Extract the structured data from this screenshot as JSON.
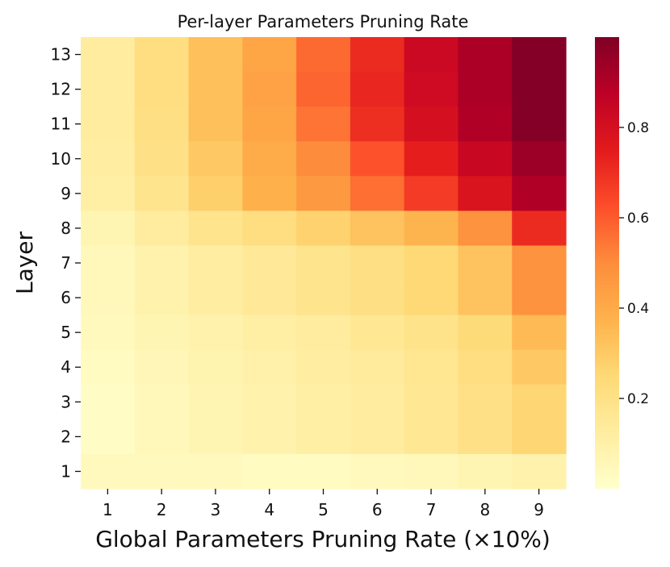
{
  "chart_data": {
    "type": "heatmap",
    "title": "Per-layer Parameters Pruning Rate",
    "xlabel": "Global Parameters Pruning Rate (×10%)",
    "ylabel": "Layer",
    "x_categories": [
      "1",
      "2",
      "3",
      "4",
      "5",
      "6",
      "7",
      "8",
      "9"
    ],
    "y_categories": [
      "13",
      "12",
      "11",
      "10",
      "9",
      "8",
      "7",
      "6",
      "5",
      "4",
      "3",
      "2",
      "1"
    ],
    "values": [
      [
        0.13,
        0.22,
        0.33,
        0.42,
        0.57,
        0.71,
        0.83,
        0.91,
        0.99
      ],
      [
        0.13,
        0.22,
        0.33,
        0.43,
        0.58,
        0.72,
        0.82,
        0.91,
        0.99
      ],
      [
        0.13,
        0.21,
        0.33,
        0.42,
        0.55,
        0.7,
        0.8,
        0.9,
        0.99
      ],
      [
        0.12,
        0.2,
        0.3,
        0.4,
        0.5,
        0.62,
        0.74,
        0.84,
        0.94
      ],
      [
        0.11,
        0.18,
        0.28,
        0.38,
        0.46,
        0.56,
        0.67,
        0.78,
        0.9
      ],
      [
        0.07,
        0.13,
        0.18,
        0.22,
        0.27,
        0.32,
        0.37,
        0.48,
        0.71
      ],
      [
        0.05,
        0.09,
        0.12,
        0.15,
        0.18,
        0.21,
        0.25,
        0.32,
        0.48
      ],
      [
        0.05,
        0.09,
        0.12,
        0.15,
        0.18,
        0.21,
        0.25,
        0.32,
        0.48
      ],
      [
        0.04,
        0.07,
        0.09,
        0.11,
        0.13,
        0.16,
        0.19,
        0.24,
        0.35
      ],
      [
        0.03,
        0.06,
        0.08,
        0.1,
        0.12,
        0.14,
        0.17,
        0.22,
        0.3
      ],
      [
        0.02,
        0.05,
        0.07,
        0.09,
        0.11,
        0.13,
        0.16,
        0.2,
        0.26
      ],
      [
        0.02,
        0.05,
        0.07,
        0.09,
        0.11,
        0.13,
        0.16,
        0.2,
        0.26
      ],
      [
        0.04,
        0.04,
        0.04,
        0.03,
        0.03,
        0.04,
        0.05,
        0.07,
        0.09
      ]
    ],
    "colorbar": {
      "colormap": "YlOrRd",
      "ticks": [
        0.2,
        0.4,
        0.6,
        0.8
      ],
      "tick_labels": [
        "0.2",
        "0.4",
        "0.6",
        "0.8"
      ],
      "range": [
        0.0,
        1.0
      ]
    },
    "colors": [
      "#ffffcc",
      "#ffeda0",
      "#fed976",
      "#feb24c",
      "#fd8d3c",
      "#fc4e2a",
      "#e31a1c",
      "#bd0026",
      "#800026"
    ]
  }
}
